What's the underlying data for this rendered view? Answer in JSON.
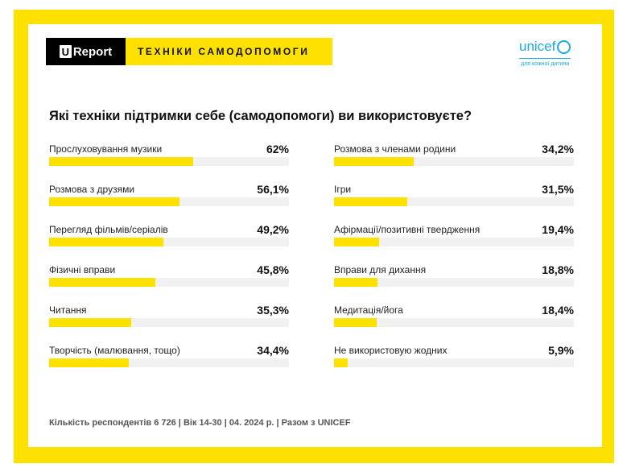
{
  "header": {
    "logo": "Report",
    "logo_u": "U",
    "tag": "ТЕХНІКИ САМОДОПОМОГИ",
    "unicef": "unicef",
    "unicef_sub": "для кожної дитини"
  },
  "chart_data": {
    "type": "bar",
    "title": "Які техніки підтримки себе (самодопомоги) ви використовуєте?",
    "unit": "%",
    "xlim": [
      0,
      100
    ],
    "items": [
      {
        "label": "Прослуховування музики",
        "value": 62,
        "text": "62%"
      },
      {
        "label": "Розмова з друзями",
        "value": 56.1,
        "text": "56,1%"
      },
      {
        "label": "Перегляд фільмів/серіалів",
        "value": 49.2,
        "text": "49,2%"
      },
      {
        "label": "Фізичні вправи",
        "value": 45.8,
        "text": "45,8%"
      },
      {
        "label": "Читання",
        "value": 35.3,
        "text": "35,3%"
      },
      {
        "label": "Творчість (малювання, тощо)",
        "value": 34.4,
        "text": "34,4%"
      },
      {
        "label": "Розмова з членами родини",
        "value": 34.2,
        "text": "34,2%"
      },
      {
        "label": "Ігри",
        "value": 31.5,
        "text": "31,5%"
      },
      {
        "label": "Афірмації/позитивні твердження",
        "value": 19.4,
        "text": "19,4%"
      },
      {
        "label": "Вправи для дихання",
        "value": 18.8,
        "text": "18,8%"
      },
      {
        "label": "Медитація/йога",
        "value": 18.4,
        "text": "18,4%"
      },
      {
        "label": "Не використовую жодних",
        "value": 5.9,
        "text": "5,9%"
      }
    ]
  },
  "footer": "Кількість респондентів 6 726 | Вік 14-30 | 04. 2024 р. | Разом з UNICEF",
  "colors": {
    "bar": "#FFE100",
    "track": "#f1f1f1",
    "frame": "#FFE100"
  }
}
